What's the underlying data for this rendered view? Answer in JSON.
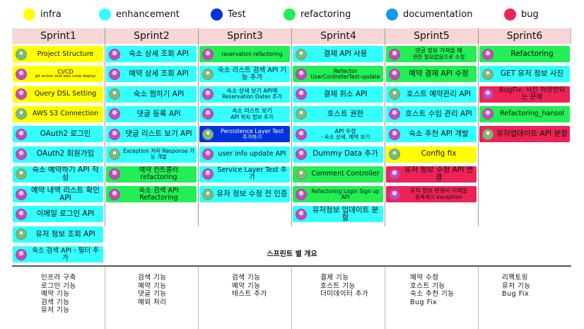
{
  "legend": [
    {
      "label": "infra",
      "color": "#ffff00"
    },
    {
      "label": "enhancement",
      "color": "#33ffff"
    },
    {
      "label": "Test",
      "color": "#0033dd"
    },
    {
      "label": "refactoring",
      "color": "#22ee55"
    },
    {
      "label": "documentation",
      "color": "#1199ee"
    },
    {
      "label": "bug",
      "color": "#ee2255"
    }
  ],
  "sprints": [
    {
      "name": "Sprint1",
      "cards": [
        {
          "text": "Project Structure",
          "label": "infra"
        },
        {
          "text": "CI/CD",
          "sub": "git action and aws code deploy",
          "label": "infra"
        },
        {
          "text": "Query DSL Setting",
          "label": "infra"
        },
        {
          "text": "AWS S3 Connection",
          "label": "infra"
        },
        {
          "text": "OAuth2 로그인",
          "label": "enhancement"
        },
        {
          "text": "OAuth2 회원가입",
          "label": "enhancement"
        },
        {
          "text": "숙소 예약하기 API 작성",
          "label": "enhancement"
        },
        {
          "text": "예약 내역 리스트 확인 API",
          "label": "enhancement"
        },
        {
          "text": "이메일 로그인 API",
          "label": "enhancement"
        },
        {
          "text": "유저 정보 조회 API",
          "label": "enhancement"
        },
        {
          "text": "숙소 검색 API - 필터 추가",
          "label": "enhancement"
        }
      ]
    },
    {
      "name": "Sprint2",
      "cards": [
        {
          "text": "숙소 상세 조회 API",
          "label": "enhancement"
        },
        {
          "text": "예약 상세 조회 API",
          "label": "enhancement"
        },
        {
          "text": "숙소 찜하기 API",
          "label": "enhancement"
        },
        {
          "text": "댓글 등록 API",
          "label": "enhancement"
        },
        {
          "text": "댓글 리스트 보기 API",
          "label": "enhancement"
        },
        {
          "text": "Exception 처리 Response 기능 개발",
          "label": "enhancement"
        },
        {
          "text": "예약 컨트롤러 refactoring",
          "label": "refactoring"
        },
        {
          "text": "숙소 검색 API Refactoring",
          "label": "refactoring"
        }
      ]
    },
    {
      "name": "Sprint3",
      "cards": [
        {
          "text": "reservation refactoring",
          "label": "refactoring"
        },
        {
          "text": "숙소 리스트 검색 API 기능 추가",
          "label": "enhancement"
        },
        {
          "text": "숙소 상세 보기 API에",
          "sub": "Reservation Dates 추가",
          "label": "enhancement"
        },
        {
          "text": "숙소 리스트 보기",
          "sub": "API 위치 정보 추가",
          "label": "enhancement"
        },
        {
          "text": "Persistence Layer Test",
          "sub": "추가하기",
          "label": "Test"
        },
        {
          "text": "user info update API",
          "label": "enhancement"
        },
        {
          "text": "Service Layer Test 추가",
          "label": "enhancement"
        },
        {
          "text": "유저 정보 수정 전 인증",
          "label": "enhancement"
        }
      ]
    },
    {
      "name": "Sprint4",
      "cards": [
        {
          "text": "결제 API 사용",
          "label": "enhancement"
        },
        {
          "text": "Refactor",
          "sub": "UserControllerTest-update",
          "label": "refactoring"
        },
        {
          "text": "결제 취소 API",
          "label": "enhancement"
        },
        {
          "text": "호스트 권한",
          "label": "enhancement"
        },
        {
          "text": "API 수정",
          "sub": "- 숙소 상세, 예약 보기",
          "label": "enhancement"
        },
        {
          "text": "Dummy Data 추가",
          "label": "enhancement"
        },
        {
          "text": "Comment Controller",
          "label": "refactoring"
        },
        {
          "text": "Refactoring Login Sign up API",
          "label": "refactoring"
        },
        {
          "text": "유저정보 업데이트 분할",
          "label": "enhancement"
        }
      ]
    },
    {
      "name": "Sprint5",
      "cards": [
        {
          "text": "댓글 정보 가져올 때",
          "sub": "권한 필요없음으로 수정",
          "label": "refactoring"
        },
        {
          "text": "예약 결제 API 수정",
          "label": "refactoring"
        },
        {
          "text": "호스트 예약관리 API",
          "label": "enhancement"
        },
        {
          "text": "호스트 수입 관리 API",
          "label": "enhancement"
        },
        {
          "text": "숙소 추천 API 개발",
          "label": "enhancement"
        },
        {
          "text": "Config fix",
          "label": "infra"
        },
        {
          "text": "유저 정보 수정 API 변경",
          "label": "bug"
        },
        {
          "text": "유저 정보 변경시 이메일",
          "sub": "중복체크 exception",
          "label": "bug"
        }
      ]
    },
    {
      "name": "Sprint6",
      "cards": [
        {
          "text": "Refactoring",
          "label": "refactoring"
        },
        {
          "text": "GET 유저 정보 사진",
          "label": "enhancement"
        },
        {
          "text": "BugFix: 사진 저장안되는 문제",
          "label": "bug"
        },
        {
          "text": "Refactoring_hansol",
          "label": "refactoring"
        },
        {
          "text": "유저업데이트 API 분할",
          "label": "bug"
        }
      ]
    }
  ],
  "overview_title": "스프린트 별 개요",
  "overview": [
    [
      "인프라 구축",
      "로그인 기능",
      "예약 기능",
      "검색 기능",
      "유저 기능"
    ],
    [
      "검색 기능",
      "예약 기능",
      "댓글 기능",
      "예외 처리"
    ],
    [
      "검색 기능",
      "예약 기능",
      "테스트 추가"
    ],
    [
      "결제 기능",
      "호스트 기능",
      "더미데이터 추가"
    ],
    [
      "예약 수정",
      "호스트 기능",
      "숙소 추천 기능",
      "Bug Fix"
    ],
    [
      "리팩토링",
      "유저 기능",
      "Bug Fix"
    ]
  ]
}
